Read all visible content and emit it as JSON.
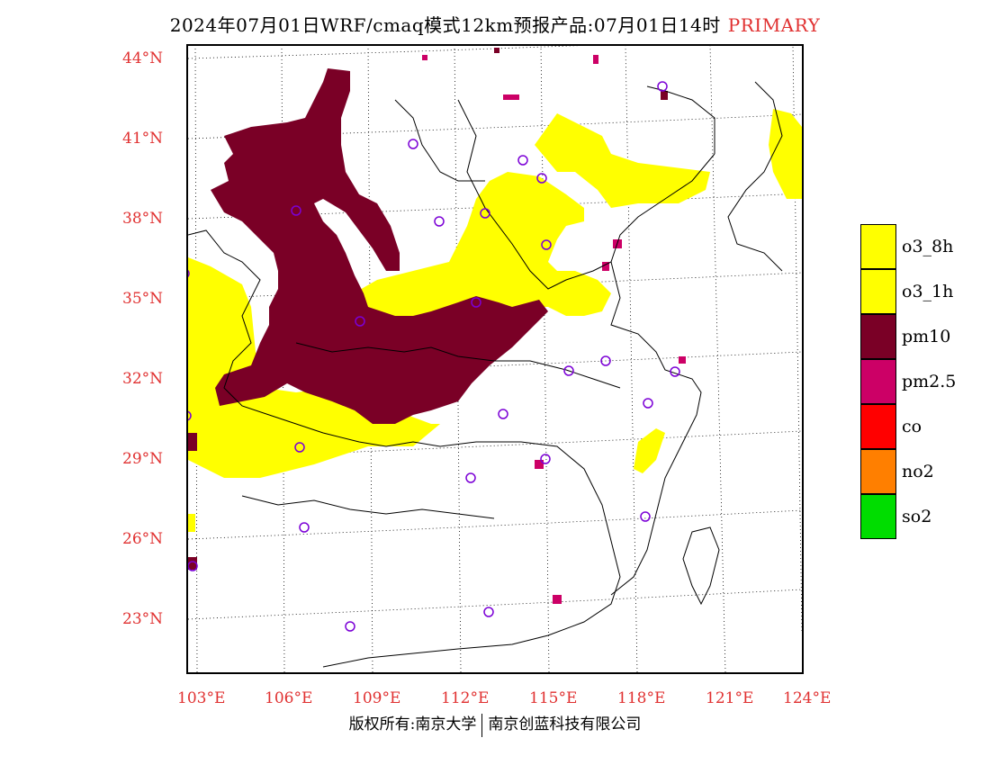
{
  "header": {
    "title": "2024年07月01日WRF/cmaq模式12km预报产品:07月01日14时",
    "tag": "PRIMARY"
  },
  "axes": {
    "latitudes": [
      "44°N",
      "41°N",
      "38°N",
      "35°N",
      "32°N",
      "29°N",
      "26°N",
      "23°N"
    ],
    "longitudes": [
      "103°E",
      "106°E",
      "109°E",
      "112°E",
      "115°E",
      "118°E",
      "121°E",
      "124°E"
    ]
  },
  "legend": [
    {
      "label": "o3_8h",
      "color": "#ffff00"
    },
    {
      "label": "o3_1h",
      "color": "#ffff00"
    },
    {
      "label": "pm10",
      "color": "#7a0026"
    },
    {
      "label": "pm2.5",
      "color": "#cc0066"
    },
    {
      "label": "co",
      "color": "#ff0000"
    },
    {
      "label": "no2",
      "color": "#ff7f00"
    },
    {
      "label": "so2",
      "color": "#00dd00"
    }
  ],
  "footer": {
    "left": "版权所有:南京大学",
    "right": "南京创蓝科技有限公司"
  }
}
